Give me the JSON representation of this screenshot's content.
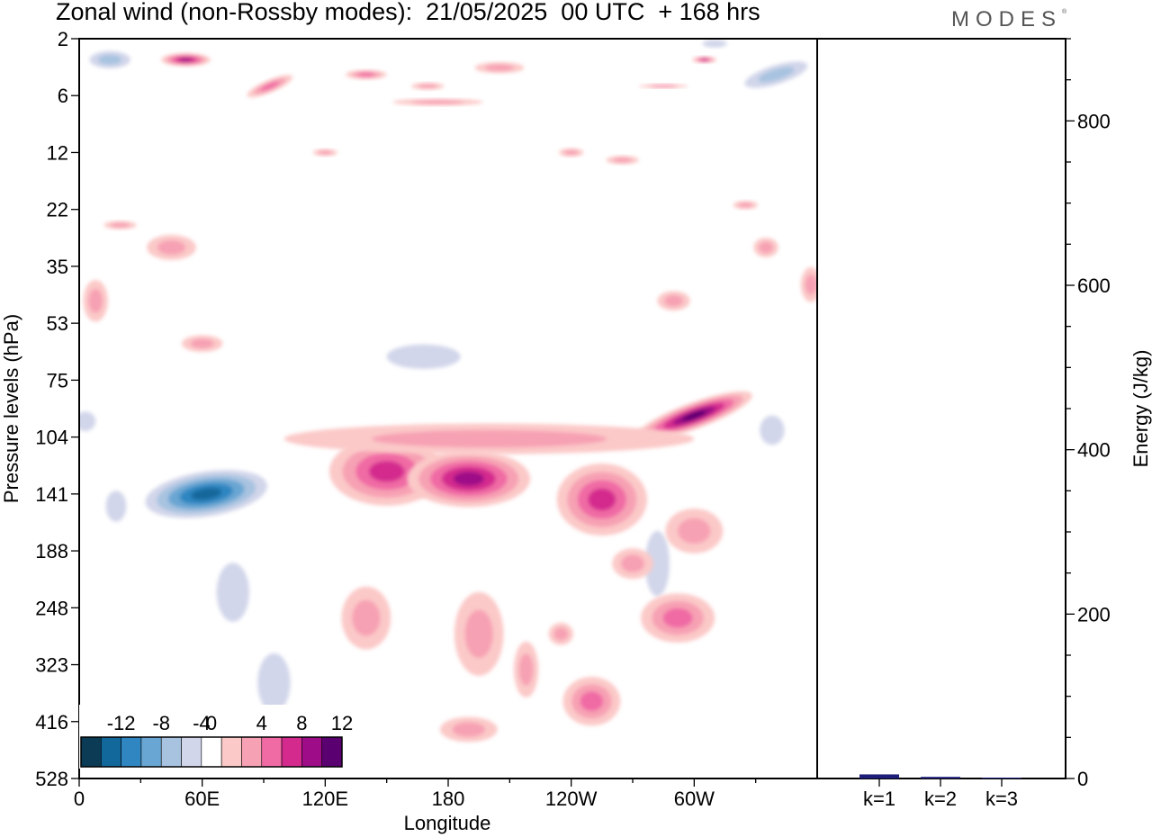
{
  "header": {
    "title": "Zonal wind (non-Rossby modes):  21/05/2025  00 UTC  + 168 hrs",
    "logo": "MODES",
    "logo_mark": "®"
  },
  "chart_data": [
    {
      "type": "heatmap",
      "title": "Zonal wind (non-Rossby modes):  21/05/2025  00 UTC  + 168 hrs",
      "xlabel": "Longitude",
      "ylabel": "Pressure levels (hPa)",
      "x_ticks": [
        "0",
        "60E",
        "120E",
        "180",
        "120W",
        "60W"
      ],
      "y_ticks": [
        "2",
        "6",
        "12",
        "22",
        "35",
        "53",
        "75",
        "104",
        "141",
        "188",
        "248",
        "323",
        "416",
        "528"
      ],
      "y_reversed": true,
      "colorbar": {
        "labels": [
          "-12",
          "-8",
          "-4",
          "0",
          "4",
          "8",
          "12"
        ],
        "levels": [
          -14,
          -12,
          -10,
          -8,
          -6,
          -4,
          -2,
          2,
          4,
          6,
          8,
          10,
          12,
          14
        ],
        "colors": [
          "#0b3b55",
          "#12679b",
          "#2f86c1",
          "#6aa6d3",
          "#a7c3e0",
          "#d2d6ea",
          "#ffffff",
          "#fbc9c8",
          "#f7a1b4",
          "#f06aa4",
          "#d42a8e",
          "#9e0d87",
          "#5a0070"
        ],
        "placement": "bottom-left"
      },
      "features": [
        {
          "name": "easterly jet core",
          "lon": 62,
          "level_hpa": 141,
          "value": -14
        },
        {
          "name": "westerly maximum",
          "lon": 150,
          "level_hpa": 120,
          "value": 7
        },
        {
          "name": "westerly maximum",
          "lon": 190,
          "level_hpa": 130,
          "value": 8
        },
        {
          "name": "westerly maximum",
          "lon": 255,
          "level_hpa": 140,
          "value": 7
        },
        {
          "name": "westerly maximum",
          "lon": 300,
          "level_hpa": 90,
          "value": 10
        }
      ]
    },
    {
      "type": "bar",
      "ylabel": "Energy (J/kg)",
      "categories": [
        "k=1",
        "k=2",
        "k=3"
      ],
      "values": [
        5,
        2,
        1
      ],
      "ylim": [
        0,
        900
      ],
      "y_ticks": [
        "0",
        "200",
        "400",
        "600",
        "800"
      ],
      "color": "#1f1f7a"
    }
  ]
}
